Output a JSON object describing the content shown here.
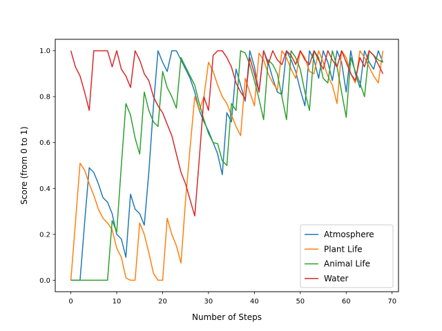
{
  "chart_data": {
    "type": "line",
    "title": "",
    "xlabel": "Number of Steps",
    "ylabel": "Score (from 0 to 1)",
    "xlim": [
      -3.4,
      71.4
    ],
    "ylim": [
      -0.05,
      1.05
    ],
    "xticks": [
      0,
      10,
      20,
      30,
      40,
      50,
      60,
      70
    ],
    "yticks": [
      0.0,
      0.2,
      0.4,
      0.6,
      0.8,
      1.0
    ],
    "xtick_labels": [
      "0",
      "10",
      "20",
      "30",
      "40",
      "50",
      "60",
      "70"
    ],
    "ytick_labels": [
      "0.0",
      "0.2",
      "0.4",
      "0.6",
      "0.8",
      "1.0"
    ],
    "grid": false,
    "legend_position": "lower-right",
    "series": [
      {
        "name": "Atmosphere",
        "color": "#1f77b4",
        "values": [
          0,
          0,
          0,
          0.25,
          0.49,
          0.47,
          0.42,
          0.36,
          0.34,
          0.29,
          0.2,
          0.18,
          0.1,
          0.375,
          0.31,
          0.29,
          0.24,
          0.47,
          0.76,
          1.0,
          0.95,
          0.91,
          1.0,
          1.0,
          0.96,
          0.92,
          0.88,
          0.82,
          0.74,
          0.69,
          0.65,
          0.6,
          0.55,
          0.46,
          0.73,
          0.69,
          0.92,
          0.85,
          0.78,
          1.0,
          0.93,
          0.82,
          1.0,
          0.95,
          0.88,
          0.82,
          0.81,
          1.0,
          0.96,
          0.91,
          0.83,
          0.76,
          1.0,
          0.96,
          0.88,
          1.0,
          0.95,
          0.87,
          1.0,
          0.95,
          0.82,
          1.0,
          0.9,
          0.84,
          1.0,
          0.95,
          0.92,
          1.0,
          0.95
        ]
      },
      {
        "name": "Plant Life",
        "color": "#ff7f0e",
        "values": [
          0,
          0.25,
          0.51,
          0.48,
          0.42,
          0.37,
          0.31,
          0.27,
          0.25,
          0.22,
          0.14,
          0.1,
          0.01,
          0,
          0,
          0.25,
          0.2,
          0.12,
          0.03,
          0,
          0,
          0.27,
          0.2,
          0.15,
          0.075,
          0.35,
          0.58,
          0.8,
          0.74,
          0.8,
          0.95,
          0.91,
          0.85,
          0.8,
          0.77,
          0.72,
          0.67,
          0.63,
          0.88,
          0.82,
          0.76,
          0.99,
          0.96,
          0.9,
          0.86,
          0.83,
          1.0,
          0.97,
          0.92,
          0.88,
          1.0,
          0.97,
          0.91,
          0.9,
          1.0,
          0.95,
          0.89,
          0.85,
          0.77,
          1.0,
          0.97,
          0.9,
          0.86,
          1.0,
          0.97,
          0.93,
          0.89,
          0.86,
          1.0
        ]
      },
      {
        "name": "Animal Life",
        "color": "#2ca02c",
        "values": [
          0,
          0,
          0,
          0,
          0,
          0,
          0,
          0,
          0,
          0.26,
          0.21,
          0.5,
          0.77,
          0.72,
          0.62,
          0.55,
          0.82,
          0.74,
          0.69,
          0.67,
          0.91,
          0.84,
          0.8,
          0.75,
          0.97,
          0.93,
          0.89,
          0.85,
          0.77,
          0.7,
          0.64,
          0.6,
          0.595,
          0.52,
          0.5,
          0.77,
          0.74,
          1.0,
          0.99,
          0.94,
          0.87,
          0.79,
          0.7,
          0.96,
          0.94,
          0.9,
          0.8,
          0.7,
          1.0,
          0.97,
          0.92,
          0.82,
          0.74,
          1.0,
          0.97,
          0.88,
          0.86,
          1.0,
          0.93,
          0.82,
          0.71,
          0.97,
          0.91,
          0.86,
          0.8,
          1.0,
          0.98,
          0.96,
          0.95
        ]
      },
      {
        "name": "Water",
        "color": "#d62728",
        "values": [
          1.0,
          0.93,
          0.89,
          0.82,
          0.74,
          1.0,
          1.0,
          1.0,
          1.0,
          0.93,
          1.0,
          0.92,
          0.89,
          0.84,
          1.0,
          0.96,
          0.9,
          0.87,
          0.8,
          0.76,
          0.73,
          0.68,
          0.63,
          0.55,
          0.47,
          0.42,
          0.35,
          0.28,
          0.53,
          0.8,
          0.74,
          0.98,
          1.0,
          1.0,
          0.97,
          0.93,
          0.86,
          0.82,
          0.79,
          0.97,
          0.9,
          0.82,
          1.0,
          0.94,
          1.0,
          0.96,
          0.94,
          1.0,
          0.98,
          0.94,
          1.0,
          0.96,
          0.94,
          1.0,
          0.96,
          0.92,
          1.0,
          0.96,
          0.93,
          1.0,
          0.95,
          0.9,
          0.87,
          0.97,
          0.93,
          1.0,
          0.98,
          0.94,
          0.9
        ]
      }
    ]
  }
}
